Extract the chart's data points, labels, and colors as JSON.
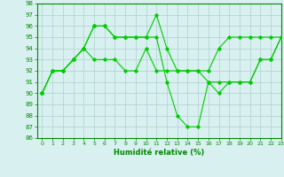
{
  "line1_x": [
    0,
    1,
    2,
    3,
    4,
    5,
    6,
    7,
    8,
    9,
    10,
    11,
    12,
    13,
    14,
    15,
    16,
    17,
    18,
    19,
    20,
    21,
    22,
    23
  ],
  "line1_y": [
    90,
    92,
    92,
    93,
    94,
    96,
    96,
    95,
    95,
    95,
    95,
    97,
    94,
    92,
    92,
    92,
    91,
    91,
    91,
    91,
    91,
    93,
    93,
    95
  ],
  "line2_x": [
    0,
    1,
    2,
    3,
    4,
    5,
    6,
    7,
    8,
    9,
    10,
    11,
    12,
    13,
    14,
    15,
    16,
    17,
    18,
    19,
    20,
    21,
    22,
    23
  ],
  "line2_y": [
    90,
    92,
    92,
    93,
    94,
    96,
    96,
    95,
    95,
    95,
    95,
    95,
    91,
    88,
    87,
    87,
    91,
    90,
    91,
    91,
    91,
    93,
    93,
    95
  ],
  "line3_x": [
    0,
    1,
    2,
    3,
    4,
    5,
    6,
    7,
    8,
    9,
    10,
    11,
    12,
    13,
    14,
    15,
    16,
    17,
    18,
    19,
    20,
    21,
    22,
    23
  ],
  "line3_y": [
    90,
    92,
    92,
    93,
    94,
    93,
    93,
    93,
    92,
    92,
    94,
    92,
    92,
    92,
    92,
    92,
    92,
    94,
    95,
    95,
    95,
    95,
    95,
    95
  ],
  "line_color": "#00cc00",
  "linewidth": 0.8,
  "marker": "D",
  "markersize": 1.8,
  "ylim": [
    86,
    98
  ],
  "xlim": [
    -0.5,
    23
  ],
  "yticks": [
    86,
    87,
    88,
    89,
    90,
    91,
    92,
    93,
    94,
    95,
    96,
    97,
    98
  ],
  "xticks": [
    0,
    1,
    2,
    3,
    4,
    5,
    6,
    7,
    8,
    9,
    10,
    11,
    12,
    13,
    14,
    15,
    16,
    17,
    18,
    19,
    20,
    21,
    22,
    23
  ],
  "xlabel": "Humidité relative (%)",
  "bg_color": "#d8f0f0",
  "grid_color": "#b0cece",
  "axis_color": "#008800",
  "tick_color": "#008800",
  "label_color": "#008800"
}
